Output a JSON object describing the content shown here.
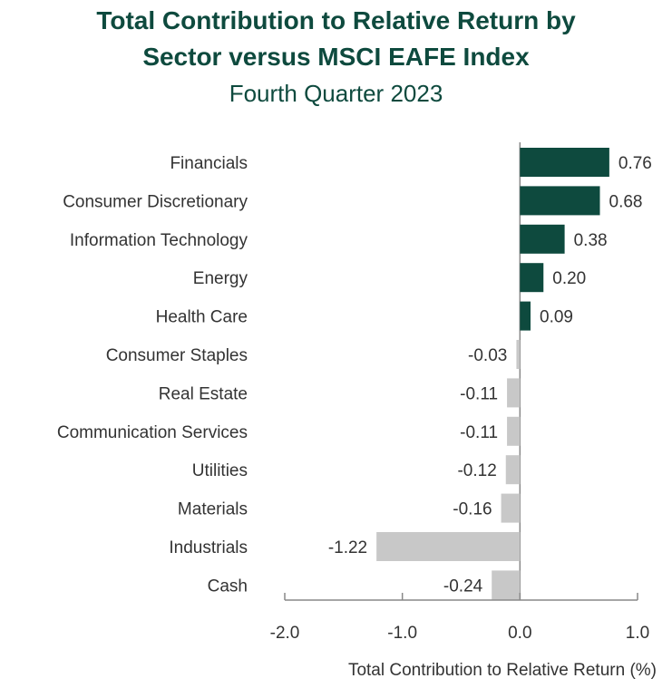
{
  "chart_data": {
    "type": "bar",
    "orientation": "horizontal",
    "title_line1": "Total Contribution to Relative Return by",
    "title_line2": "Sector versus MSCI EAFE Index",
    "subtitle": "Fourth Quarter 2023",
    "xlabel": "Total Contribution to Relative Return (%)",
    "xlim": [
      -2.0,
      1.0
    ],
    "xticks": [
      "-2.0",
      "-1.0",
      "0.0",
      "1.0"
    ],
    "categories": [
      "Financials",
      "Consumer Discretionary",
      "Information Technology",
      "Energy",
      "Health Care",
      "Consumer Staples",
      "Real Estate",
      "Communication Services",
      "Utilities",
      "Materials",
      "Industrials",
      "Cash"
    ],
    "values": [
      0.76,
      0.68,
      0.38,
      0.2,
      0.09,
      -0.03,
      -0.11,
      -0.11,
      -0.12,
      -0.16,
      -1.22,
      -0.24
    ],
    "value_labels": [
      "0.76",
      "0.68",
      "0.38",
      "0.20",
      "0.09",
      "-0.03",
      "-0.11",
      "-0.11",
      "-0.12",
      "-0.16",
      "-1.22",
      "-0.24"
    ],
    "colors": {
      "positive": "#0e4a3e",
      "negative": "#c8c8c8",
      "axis": "#888888"
    },
    "grid": false
  }
}
